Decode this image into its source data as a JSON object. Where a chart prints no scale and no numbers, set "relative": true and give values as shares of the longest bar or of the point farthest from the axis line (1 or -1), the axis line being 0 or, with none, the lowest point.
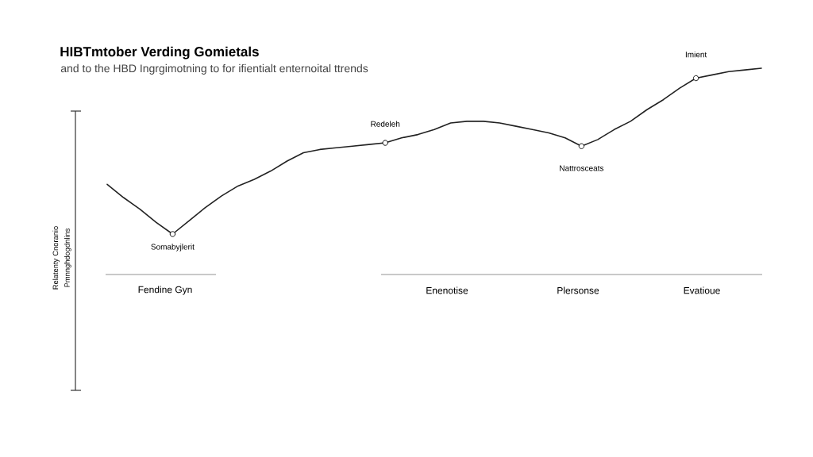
{
  "chart_data": {
    "type": "line",
    "title": "HIBTmtober Verding Gomietals",
    "subtitle": "and to the HBD Ingrgimotning to for ifientialt enternoital ttrends",
    "ylabel": "Relatenty Cnoranio Pmnnghdogdnlins",
    "categories": [
      null,
      null,
      null,
      null,
      null,
      null,
      null,
      null,
      null,
      null,
      null,
      null,
      null,
      null,
      null,
      null,
      null,
      null,
      null,
      null,
      null,
      null,
      null,
      null,
      null,
      null,
      null,
      null,
      null,
      null,
      null,
      null,
      null,
      null,
      null,
      null,
      null,
      null,
      null,
      null,
      null
    ],
    "relative": true,
    "series": [
      {
        "color": "#222222",
        "values": [
          0.3,
          0.22,
          0.15,
          0.07,
          0,
          0.08,
          0.16,
          0.23,
          0.29,
          0.33,
          0.38,
          0.44,
          0.49,
          0.51,
          0.52,
          0.53,
          0.54,
          0.55,
          0.58,
          0.6,
          0.63,
          0.67,
          0.68,
          0.68,
          0.67,
          0.65,
          0.63,
          0.61,
          0.58,
          0.53,
          0.57,
          0.63,
          0.68,
          0.75,
          0.81,
          0.88,
          0.94,
          0.96,
          0.98,
          0.99,
          1
        ]
      }
    ],
    "annotations": [
      {
        "text": "Somabyjlerit",
        "y": 0
      },
      {
        "text": "Redeleh",
        "y": 0.55
      },
      {
        "text": "Nattrosceats",
        "y": 0.53
      },
      {
        "text": "Imient",
        "y": 0.94
      },
      "Fendine Gyn",
      "Enenotise",
      "Plersonse",
      "Evatioue"
    ],
    "line_style": "solid"
  }
}
